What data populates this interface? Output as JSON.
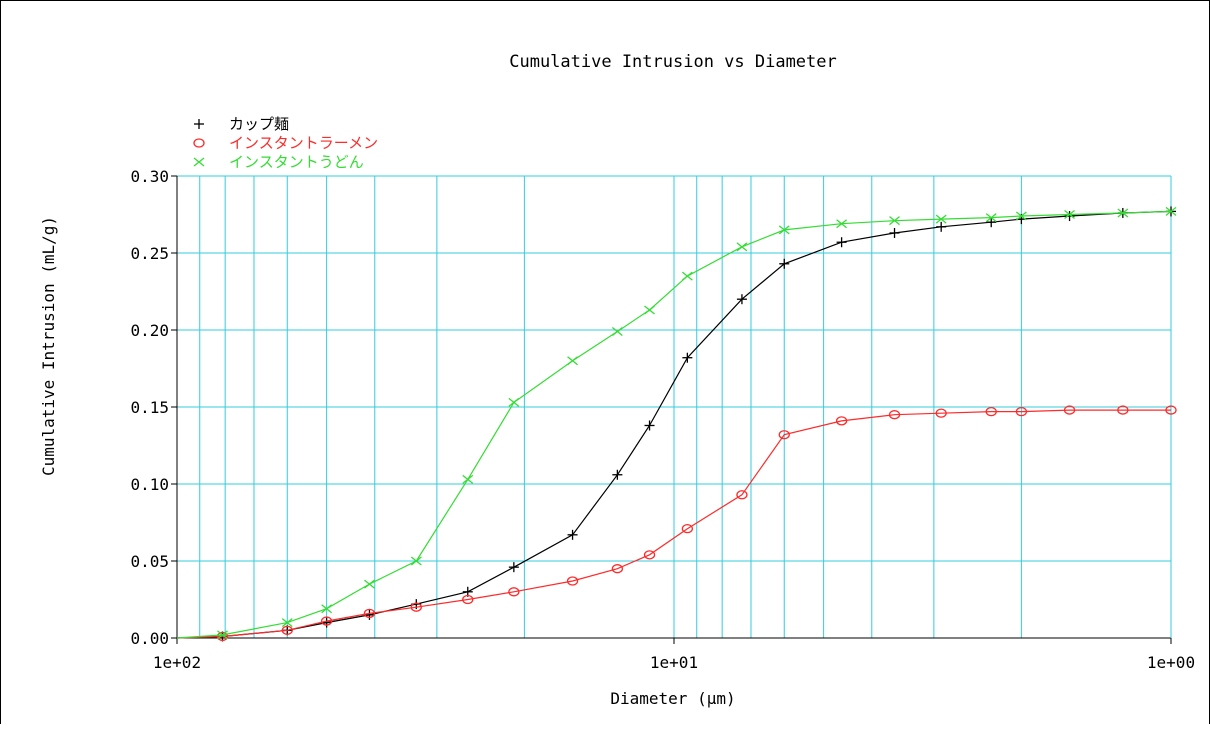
{
  "chart_data": {
    "type": "line",
    "title": "Cumulative Intrusion vs Diameter",
    "xlabel": "Diameter (µm)",
    "ylabel": "Cumulative Intrusion (mL/g)",
    "x_scale": "log",
    "x_reversed": true,
    "xlim": [
      100,
      1
    ],
    "ylim": [
      0,
      0.3
    ],
    "grid": true,
    "grid_color": "#33ccdd",
    "legend_position": "top-left",
    "x_ticks": [
      {
        "value": 100,
        "label": "1e+02"
      },
      {
        "value": 10,
        "label": "1e+01"
      },
      {
        "value": 1,
        "label": "1e+00"
      }
    ],
    "y_ticks": [
      {
        "value": 0.0,
        "label": "0.00"
      },
      {
        "value": 0.05,
        "label": "0.05"
      },
      {
        "value": 0.1,
        "label": "0.10"
      },
      {
        "value": 0.15,
        "label": "0.15"
      },
      {
        "value": 0.2,
        "label": "0.20"
      },
      {
        "value": 0.25,
        "label": "0.25"
      },
      {
        "value": 0.3,
        "label": "0.30"
      }
    ],
    "series": [
      {
        "name": "カップ麺",
        "color": "#000000",
        "marker": "plus",
        "points": [
          [
            100,
            0.0
          ],
          [
            81,
            0.001
          ],
          [
            60,
            0.005
          ],
          [
            50,
            0.01
          ],
          [
            41,
            0.015
          ],
          [
            33,
            0.022
          ],
          [
            26,
            0.03
          ],
          [
            21,
            0.046
          ],
          [
            16,
            0.067
          ],
          [
            13,
            0.106
          ],
          [
            11.2,
            0.138
          ],
          [
            9.4,
            0.182
          ],
          [
            7.3,
            0.22
          ],
          [
            6.0,
            0.243
          ],
          [
            4.6,
            0.257
          ],
          [
            3.6,
            0.263
          ],
          [
            2.9,
            0.267
          ],
          [
            2.3,
            0.27
          ],
          [
            2.0,
            0.272
          ],
          [
            1.6,
            0.274
          ],
          [
            1.25,
            0.276
          ],
          [
            1.0,
            0.277
          ]
        ]
      },
      {
        "name": "インスタントラーメン",
        "color": "#ff2a2a",
        "marker": "circle",
        "points": [
          [
            100,
            0.0
          ],
          [
            81,
            0.001
          ],
          [
            60,
            0.005
          ],
          [
            50,
            0.011
          ],
          [
            41,
            0.016
          ],
          [
            33,
            0.02
          ],
          [
            26,
            0.025
          ],
          [
            21,
            0.03
          ],
          [
            16,
            0.037
          ],
          [
            13,
            0.045
          ],
          [
            11.2,
            0.054
          ],
          [
            9.4,
            0.071
          ],
          [
            7.3,
            0.093
          ],
          [
            6.0,
            0.132
          ],
          [
            4.6,
            0.141
          ],
          [
            3.6,
            0.145
          ],
          [
            2.9,
            0.146
          ],
          [
            2.3,
            0.147
          ],
          [
            2.0,
            0.147
          ],
          [
            1.6,
            0.148
          ],
          [
            1.25,
            0.148
          ],
          [
            1.0,
            0.148
          ]
        ]
      },
      {
        "name": "インスタントうどん",
        "color": "#33dd33",
        "marker": "x",
        "points": [
          [
            100,
            0.0
          ],
          [
            81,
            0.002
          ],
          [
            60,
            0.01
          ],
          [
            50,
            0.019
          ],
          [
            41,
            0.035
          ],
          [
            33,
            0.05
          ],
          [
            26,
            0.103
          ],
          [
            21,
            0.153
          ],
          [
            16,
            0.18
          ],
          [
            13,
            0.199
          ],
          [
            11.2,
            0.213
          ],
          [
            9.4,
            0.235
          ],
          [
            7.3,
            0.254
          ],
          [
            6.0,
            0.265
          ],
          [
            4.6,
            0.269
          ],
          [
            3.6,
            0.271
          ],
          [
            2.9,
            0.272
          ],
          [
            2.3,
            0.273
          ],
          [
            2.0,
            0.274
          ],
          [
            1.6,
            0.275
          ],
          [
            1.25,
            0.276
          ],
          [
            1.0,
            0.277
          ]
        ]
      }
    ]
  }
}
